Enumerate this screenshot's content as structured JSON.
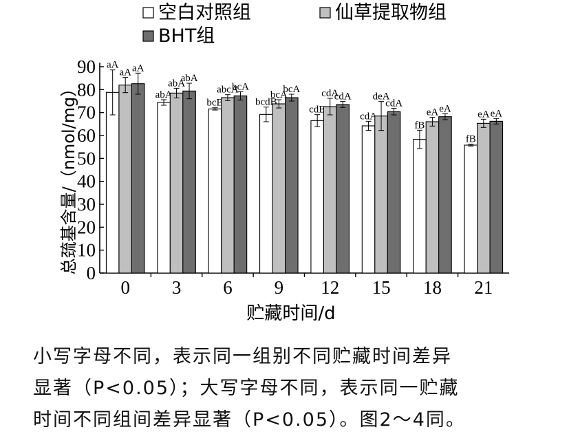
{
  "chart_data": {
    "type": "bar",
    "xlabel": "贮藏时间/d",
    "ylabel": "总巯基含量/（nmol/mg）",
    "ylim": [
      0,
      90
    ],
    "yticks": [
      0,
      10,
      20,
      30,
      40,
      50,
      60,
      70,
      80,
      90
    ],
    "categories": [
      "0",
      "3",
      "6",
      "9",
      "12",
      "15",
      "18",
      "21"
    ],
    "legend_position": "top",
    "series": [
      {
        "name": "空白对照组",
        "color": "#ffffff",
        "values": [
          78.8,
          74.4,
          71.6,
          69.2,
          66.5,
          64.2,
          58.3,
          55.8
        ],
        "errors": [
          9.8,
          1.2,
          0.5,
          3.2,
          2.6,
          2.0,
          4.0,
          0.4
        ],
        "labels": [
          "aA",
          "abA",
          "bcB",
          "bcdB",
          "cdB",
          "cdA",
          "fB",
          "fB"
        ]
      },
      {
        "name": "仙草提取物组",
        "color": "#bfbfbf",
        "values": [
          82.0,
          78.5,
          76.5,
          73.8,
          72.6,
          68.5,
          66.0,
          65.3
        ],
        "errors": [
          3.3,
          2.1,
          1.3,
          1.8,
          3.6,
          6.3,
          1.9,
          1.8
        ],
        "labels": [
          "aA",
          "abA",
          "abcA",
          "bcA",
          "cdA",
          "deA",
          "eA",
          "eA"
        ]
      },
      {
        "name": "BHT组",
        "color": "#6e6e6e",
        "values": [
          82.6,
          79.4,
          77.3,
          76.5,
          73.5,
          70.4,
          68.2,
          66.2
        ],
        "errors": [
          4.6,
          3.4,
          1.8,
          1.5,
          1.3,
          1.4,
          1.3,
          1.2
        ],
        "labels": [
          "aA",
          "abA",
          "bcA",
          "bcA",
          "cdA",
          "cdA",
          "eA",
          "eA"
        ]
      }
    ]
  },
  "caption": {
    "line1": "小写字母不同，表示同一组别不同贮藏时间差异",
    "line2": "显著（P<0.05）；大写字母不同，表示同一贮藏",
    "line3": "时间不同组间差异显著（P<0.05）。图2～4同。"
  }
}
